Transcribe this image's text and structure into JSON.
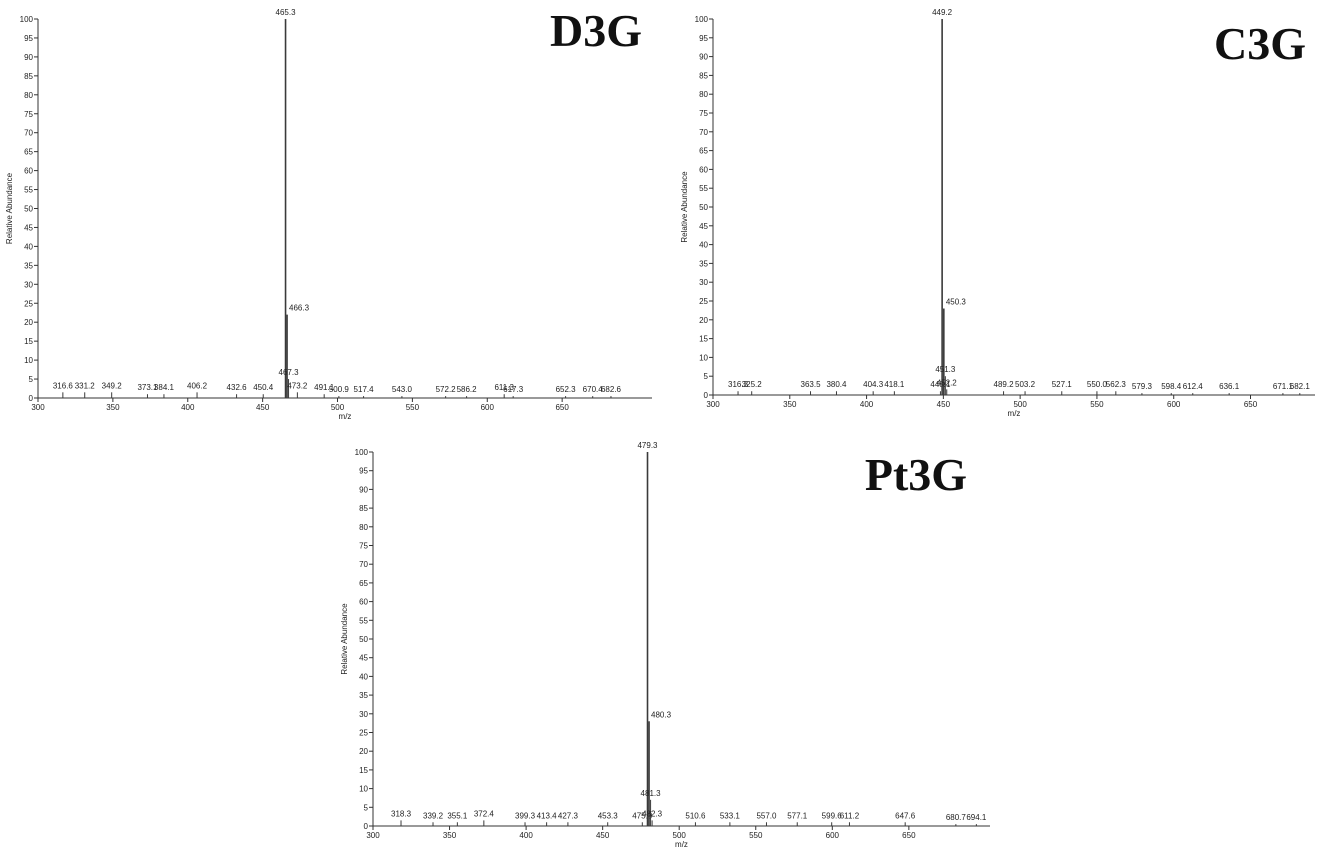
{
  "chart_data": [
    {
      "type": "stem",
      "title": "D3G",
      "x_label": "m/z",
      "y_label": "Relative Abundance",
      "color": "#3a3a3a",
      "x": [
        316.6,
        331.2,
        349.2,
        373.1,
        384.1,
        406.2,
        432.6,
        450.4,
        465.3,
        466.3,
        467.3,
        473.2,
        491.1,
        500.9,
        517.4,
        543.0,
        572.2,
        586.2,
        611.3,
        617.3,
        652.3,
        670.4,
        682.6
      ],
      "x_labels": [
        "316.6",
        "331.2",
        "349.2",
        "373.1",
        "384.1",
        "406.2",
        "432.6",
        "450.4",
        "465.3",
        "466.3",
        "467.3",
        "473.2",
        "491.1",
        "500.9",
        "517.4",
        "543.0",
        "572.2",
        "586.2",
        "611.3",
        "617.3",
        "652.3",
        "670.4",
        "682.6"
      ],
      "values": [
        1.5,
        1.5,
        1.5,
        1,
        1,
        1.5,
        1,
        1,
        100,
        22,
        5,
        1.5,
        1,
        0.5,
        0.5,
        0.5,
        0.5,
        0.5,
        1,
        0.5,
        0.5,
        0.5,
        0.5
      ],
      "xlim": [
        300,
        710
      ],
      "ylim": [
        0,
        100
      ],
      "xticks": [
        300,
        350,
        400,
        450,
        500,
        550,
        600,
        650
      ],
      "yticks": [
        0,
        5,
        10,
        15,
        20,
        25,
        30,
        35,
        40,
        45,
        50,
        55,
        60,
        65,
        70,
        75,
        80,
        85,
        90,
        95,
        100
      ]
    },
    {
      "type": "stem",
      "title": "C3G",
      "x_label": "m/z",
      "y_label": "Relative Abundance",
      "color": "#3a3a3a",
      "x": [
        316.3,
        325.2,
        363.5,
        380.4,
        404.3,
        418.1,
        448.1,
        449.2,
        450.3,
        451.3,
        452.2,
        489.2,
        503.2,
        527.1,
        550.0,
        562.3,
        579.3,
        598.4,
        612.4,
        636.1,
        671.1,
        682.1
      ],
      "x_labels": [
        "316.3",
        "325.2",
        "363.5",
        "380.4",
        "404.3",
        "418.1",
        "448.1",
        "449.2",
        "450.3",
        "451.3",
        "452.2",
        "489.2",
        "503.2",
        "527.1",
        "550.0",
        "562.3",
        "579.3",
        "598.4",
        "612.4",
        "636.1",
        "671.1",
        "682.1"
      ],
      "values": [
        1,
        1,
        1,
        1,
        1,
        1,
        1,
        100,
        23,
        5,
        1.5,
        1,
        1,
        1,
        1,
        1,
        0.5,
        0.5,
        0.5,
        0.5,
        0.5,
        0.5
      ],
      "xlim": [
        300,
        692
      ],
      "ylim": [
        0,
        100
      ],
      "xticks": [
        300,
        350,
        400,
        450,
        500,
        550,
        600,
        650
      ],
      "yticks": [
        0,
        5,
        10,
        15,
        20,
        25,
        30,
        35,
        40,
        45,
        50,
        55,
        60,
        65,
        70,
        75,
        80,
        85,
        90,
        95,
        100
      ]
    },
    {
      "type": "stem",
      "title": "Pt3G",
      "x_label": "m/z",
      "y_label": "Relative Abundance",
      "color": "#3a3a3a",
      "x": [
        318.3,
        339.2,
        355.1,
        372.4,
        399.3,
        413.4,
        427.3,
        453.3,
        475.9,
        479.3,
        480.3,
        481.3,
        482.3,
        510.6,
        533.1,
        557.0,
        577.1,
        599.6,
        611.2,
        647.6,
        680.7,
        694.1
      ],
      "x_labels": [
        "318.3",
        "339.2",
        "355.1",
        "372.4",
        "399.3",
        "413.4",
        "427.3",
        "453.3",
        "475.9",
        "479.3",
        "480.3",
        "481.3",
        "482.3",
        "510.6",
        "533.1",
        "557.0",
        "577.1",
        "599.6",
        "611.2",
        "647.6",
        "680.7",
        "694.1"
      ],
      "values": [
        1.5,
        1,
        1,
        1.5,
        1,
        1,
        1,
        1,
        1,
        100,
        28,
        7,
        1.5,
        1,
        1,
        1,
        1,
        1,
        1,
        1,
        0.5,
        0.5
      ],
      "xlim": [
        300,
        703
      ],
      "ylim": [
        0,
        100
      ],
      "xticks": [
        300,
        350,
        400,
        450,
        500,
        550,
        600,
        650
      ],
      "yticks": [
        0,
        5,
        10,
        15,
        20,
        25,
        30,
        35,
        40,
        45,
        50,
        55,
        60,
        65,
        70,
        75,
        80,
        85,
        90,
        95,
        100
      ]
    }
  ]
}
